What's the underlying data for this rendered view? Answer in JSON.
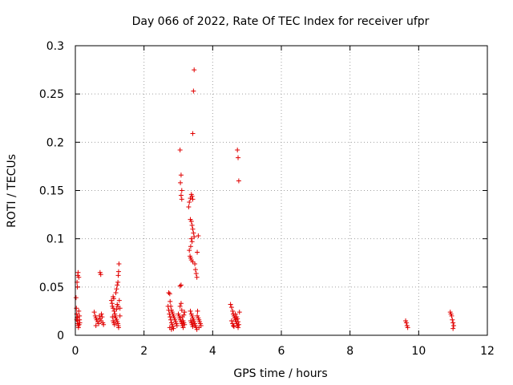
{
  "chart_data": {
    "type": "scatter",
    "title": "Day 066 of 2022, Rate Of TEC Index for receiver ufpr",
    "xlabel": "GPS time / hours",
    "ylabel": "ROTI / TECUs",
    "xlim": [
      0,
      12
    ],
    "ylim": [
      0,
      0.3
    ],
    "xticks": [
      0,
      2,
      4,
      6,
      8,
      10,
      12
    ],
    "xtick_labels": [
      "0",
      "2",
      "4",
      "6",
      "8",
      "10",
      "12"
    ],
    "yticks": [
      0,
      0.05,
      0.1,
      0.15,
      0.2,
      0.25,
      0.3
    ],
    "ytick_labels": [
      "0",
      "0.05",
      "0.1",
      "0.15",
      "0.2",
      "0.25",
      "0.3"
    ],
    "grid": true,
    "marker": "+",
    "color": "#e00000",
    "series": [
      {
        "name": "ROTI",
        "points": [
          [
            0.02,
            0.039
          ],
          [
            0.03,
            0.028
          ],
          [
            0.04,
            0.022
          ],
          [
            0.05,
            0.018
          ],
          [
            0.06,
            0.015
          ],
          [
            0.07,
            0.012
          ],
          [
            0.08,
            0.01
          ],
          [
            0.09,
            0.008
          ],
          [
            0.05,
            0.055
          ],
          [
            0.07,
            0.062
          ],
          [
            0.08,
            0.065
          ],
          [
            0.06,
            0.05
          ],
          [
            0.1,
            0.06
          ],
          [
            0.1,
            0.025
          ],
          [
            0.12,
            0.02
          ],
          [
            0.12,
            0.016
          ],
          [
            0.13,
            0.013
          ],
          [
            0.11,
            0.011
          ],
          [
            0.04,
            0.016
          ],
          [
            0.06,
            0.019
          ],
          [
            0.55,
            0.024
          ],
          [
            0.58,
            0.02
          ],
          [
            0.6,
            0.018
          ],
          [
            0.62,
            0.016
          ],
          [
            0.65,
            0.014
          ],
          [
            0.68,
            0.012
          ],
          [
            0.6,
            0.01
          ],
          [
            0.7,
            0.02
          ],
          [
            0.72,
            0.017
          ],
          [
            0.75,
            0.015
          ],
          [
            0.78,
            0.019
          ],
          [
            0.8,
            0.013
          ],
          [
            0.82,
            0.011
          ],
          [
            0.72,
            0.065
          ],
          [
            0.74,
            0.063
          ],
          [
            0.76,
            0.022
          ],
          [
            1.05,
            0.036
          ],
          [
            1.07,
            0.033
          ],
          [
            1.08,
            0.03
          ],
          [
            1.1,
            0.028
          ],
          [
            1.1,
            0.04
          ],
          [
            1.12,
            0.038
          ],
          [
            1.13,
            0.025
          ],
          [
            1.15,
            0.022
          ],
          [
            1.16,
            0.02
          ],
          [
            1.18,
            0.018
          ],
          [
            1.2,
            0.016
          ],
          [
            1.22,
            0.014
          ],
          [
            1.24,
            0.012
          ],
          [
            1.25,
            0.01
          ],
          [
            1.26,
            0.008
          ],
          [
            1.08,
            0.019
          ],
          [
            1.1,
            0.015
          ],
          [
            1.12,
            0.013
          ],
          [
            1.14,
            0.011
          ],
          [
            1.2,
            0.027
          ],
          [
            1.22,
            0.032
          ],
          [
            1.24,
            0.03
          ],
          [
            1.18,
            0.044
          ],
          [
            1.2,
            0.048
          ],
          [
            1.22,
            0.052
          ],
          [
            1.24,
            0.055
          ],
          [
            1.25,
            0.062
          ],
          [
            1.26,
            0.066
          ],
          [
            1.27,
            0.074
          ],
          [
            1.28,
            0.036
          ],
          [
            1.3,
            0.028
          ],
          [
            1.3,
            0.02
          ],
          [
            2.72,
            0.044
          ],
          [
            2.75,
            0.043
          ],
          [
            2.7,
            0.03
          ],
          [
            2.72,
            0.026
          ],
          [
            2.74,
            0.022
          ],
          [
            2.76,
            0.019
          ],
          [
            2.78,
            0.016
          ],
          [
            2.8,
            0.013
          ],
          [
            2.82,
            0.011
          ],
          [
            2.84,
            0.009
          ],
          [
            2.86,
            0.007
          ],
          [
            2.76,
            0.035
          ],
          [
            2.78,
            0.03
          ],
          [
            2.8,
            0.026
          ],
          [
            2.82,
            0.024
          ],
          [
            2.84,
            0.022
          ],
          [
            2.86,
            0.02
          ],
          [
            2.88,
            0.018
          ],
          [
            2.9,
            0.016
          ],
          [
            2.92,
            0.014
          ],
          [
            2.94,
            0.012
          ],
          [
            2.96,
            0.01
          ],
          [
            2.75,
            0.008
          ],
          [
            2.8,
            0.006
          ],
          [
            3.0,
            0.022
          ],
          [
            3.02,
            0.02
          ],
          [
            3.04,
            0.018
          ],
          [
            3.06,
            0.016
          ],
          [
            3.08,
            0.014
          ],
          [
            3.1,
            0.012
          ],
          [
            3.12,
            0.01
          ],
          [
            3.14,
            0.008
          ],
          [
            3.16,
            0.021
          ],
          [
            3.18,
            0.024
          ],
          [
            3.05,
            0.03
          ],
          [
            3.08,
            0.033
          ],
          [
            3.1,
            0.026
          ],
          [
            3.12,
            0.019
          ],
          [
            3.14,
            0.015
          ],
          [
            3.16,
            0.013
          ],
          [
            3.18,
            0.011
          ],
          [
            3.05,
            0.192
          ],
          [
            3.08,
            0.166
          ],
          [
            3.06,
            0.158
          ],
          [
            3.1,
            0.15
          ],
          [
            3.08,
            0.145
          ],
          [
            3.1,
            0.141
          ],
          [
            3.05,
            0.051
          ],
          [
            3.08,
            0.052
          ],
          [
            3.35,
            0.025
          ],
          [
            3.38,
            0.022
          ],
          [
            3.4,
            0.02
          ],
          [
            3.42,
            0.018
          ],
          [
            3.44,
            0.016
          ],
          [
            3.46,
            0.014
          ],
          [
            3.48,
            0.012
          ],
          [
            3.5,
            0.01
          ],
          [
            3.52,
            0.008
          ],
          [
            3.54,
            0.006
          ],
          [
            3.36,
            0.015
          ],
          [
            3.38,
            0.013
          ],
          [
            3.4,
            0.011
          ],
          [
            3.42,
            0.009
          ],
          [
            3.3,
            0.133
          ],
          [
            3.32,
            0.138
          ],
          [
            3.35,
            0.142
          ],
          [
            3.38,
            0.146
          ],
          [
            3.4,
            0.144
          ],
          [
            3.42,
            0.141
          ],
          [
            3.35,
            0.12
          ],
          [
            3.38,
            0.118
          ],
          [
            3.4,
            0.114
          ],
          [
            3.42,
            0.11
          ],
          [
            3.44,
            0.106
          ],
          [
            3.46,
            0.102
          ],
          [
            3.38,
            0.1
          ],
          [
            3.4,
            0.097
          ],
          [
            3.36,
            0.092
          ],
          [
            3.32,
            0.088
          ],
          [
            3.34,
            0.082
          ],
          [
            3.36,
            0.08
          ],
          [
            3.38,
            0.078
          ],
          [
            3.42,
            0.076
          ],
          [
            3.48,
            0.074
          ],
          [
            3.5,
            0.068
          ],
          [
            3.52,
            0.064
          ],
          [
            3.54,
            0.06
          ],
          [
            3.55,
            0.086
          ],
          [
            3.58,
            0.103
          ],
          [
            3.42,
            0.209
          ],
          [
            3.44,
            0.253
          ],
          [
            3.46,
            0.275
          ],
          [
            3.55,
            0.02
          ],
          [
            3.58,
            0.018
          ],
          [
            3.6,
            0.016
          ],
          [
            3.62,
            0.014
          ],
          [
            3.64,
            0.012
          ],
          [
            3.66,
            0.01
          ],
          [
            3.56,
            0.025
          ],
          [
            3.6,
            0.008
          ],
          [
            4.52,
            0.032
          ],
          [
            4.55,
            0.029
          ],
          [
            4.58,
            0.025
          ],
          [
            4.6,
            0.022
          ],
          [
            4.62,
            0.02
          ],
          [
            4.64,
            0.018
          ],
          [
            4.66,
            0.016
          ],
          [
            4.68,
            0.014
          ],
          [
            4.7,
            0.012
          ],
          [
            4.72,
            0.01
          ],
          [
            4.74,
            0.008
          ],
          [
            4.55,
            0.015
          ],
          [
            4.58,
            0.012
          ],
          [
            4.6,
            0.01
          ],
          [
            4.62,
            0.009
          ],
          [
            4.66,
            0.022
          ],
          [
            4.7,
            0.019
          ],
          [
            4.72,
            0.017
          ],
          [
            4.74,
            0.014
          ],
          [
            4.76,
            0.011
          ],
          [
            4.78,
            0.024
          ],
          [
            4.72,
            0.192
          ],
          [
            4.74,
            0.184
          ],
          [
            4.76,
            0.16
          ],
          [
            9.62,
            0.015
          ],
          [
            9.64,
            0.013
          ],
          [
            9.66,
            0.01
          ],
          [
            9.68,
            0.008
          ],
          [
            10.92,
            0.024
          ],
          [
            10.94,
            0.022
          ],
          [
            10.96,
            0.02
          ],
          [
            10.98,
            0.016
          ],
          [
            11.0,
            0.013
          ],
          [
            11.02,
            0.01
          ],
          [
            11.0,
            0.007
          ]
        ]
      }
    ]
  }
}
